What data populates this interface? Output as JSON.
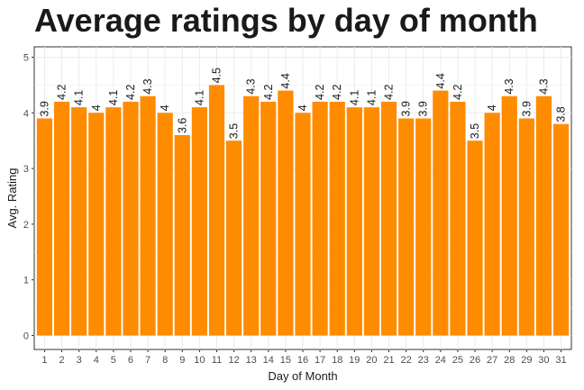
{
  "chart_data": {
    "type": "bar",
    "title": "Average ratings by day of month",
    "xlabel": "Day of Month",
    "ylabel": "Avg. Rating",
    "ylim": [
      0,
      5.15
    ],
    "yticks": [
      "0",
      "1",
      "2",
      "3",
      "4",
      "5"
    ],
    "grid": true,
    "bar_color": "#ff8c00",
    "categories": [
      "1",
      "2",
      "3",
      "4",
      "5",
      "6",
      "7",
      "8",
      "9",
      "10",
      "11",
      "12",
      "13",
      "14",
      "15",
      "16",
      "17",
      "18",
      "19",
      "20",
      "21",
      "22",
      "23",
      "24",
      "25",
      "26",
      "27",
      "28",
      "29",
      "30",
      "31"
    ],
    "values": [
      3.9,
      4.2,
      4.1,
      4.0,
      4.1,
      4.2,
      4.3,
      4.0,
      3.6,
      4.1,
      4.5,
      3.5,
      4.3,
      4.2,
      4.4,
      4.0,
      4.2,
      4.2,
      4.1,
      4.1,
      4.2,
      3.9,
      3.9,
      4.4,
      4.2,
      3.5,
      4.0,
      4.3,
      3.9,
      4.3,
      3.8
    ],
    "labels": [
      "3.9",
      "4.2",
      "4.1",
      "4",
      "4.1",
      "4.2",
      "4.3",
      "4",
      "3.6",
      "4.1",
      "4.5",
      "3.5",
      "4.3",
      "4.2",
      "4.4",
      "4",
      "4.2",
      "4.2",
      "4.1",
      "4.1",
      "4.2",
      "3.9",
      "3.9",
      "4.4",
      "4.2",
      "3.5",
      "4",
      "4.3",
      "3.9",
      "4.3",
      "3.8"
    ]
  }
}
